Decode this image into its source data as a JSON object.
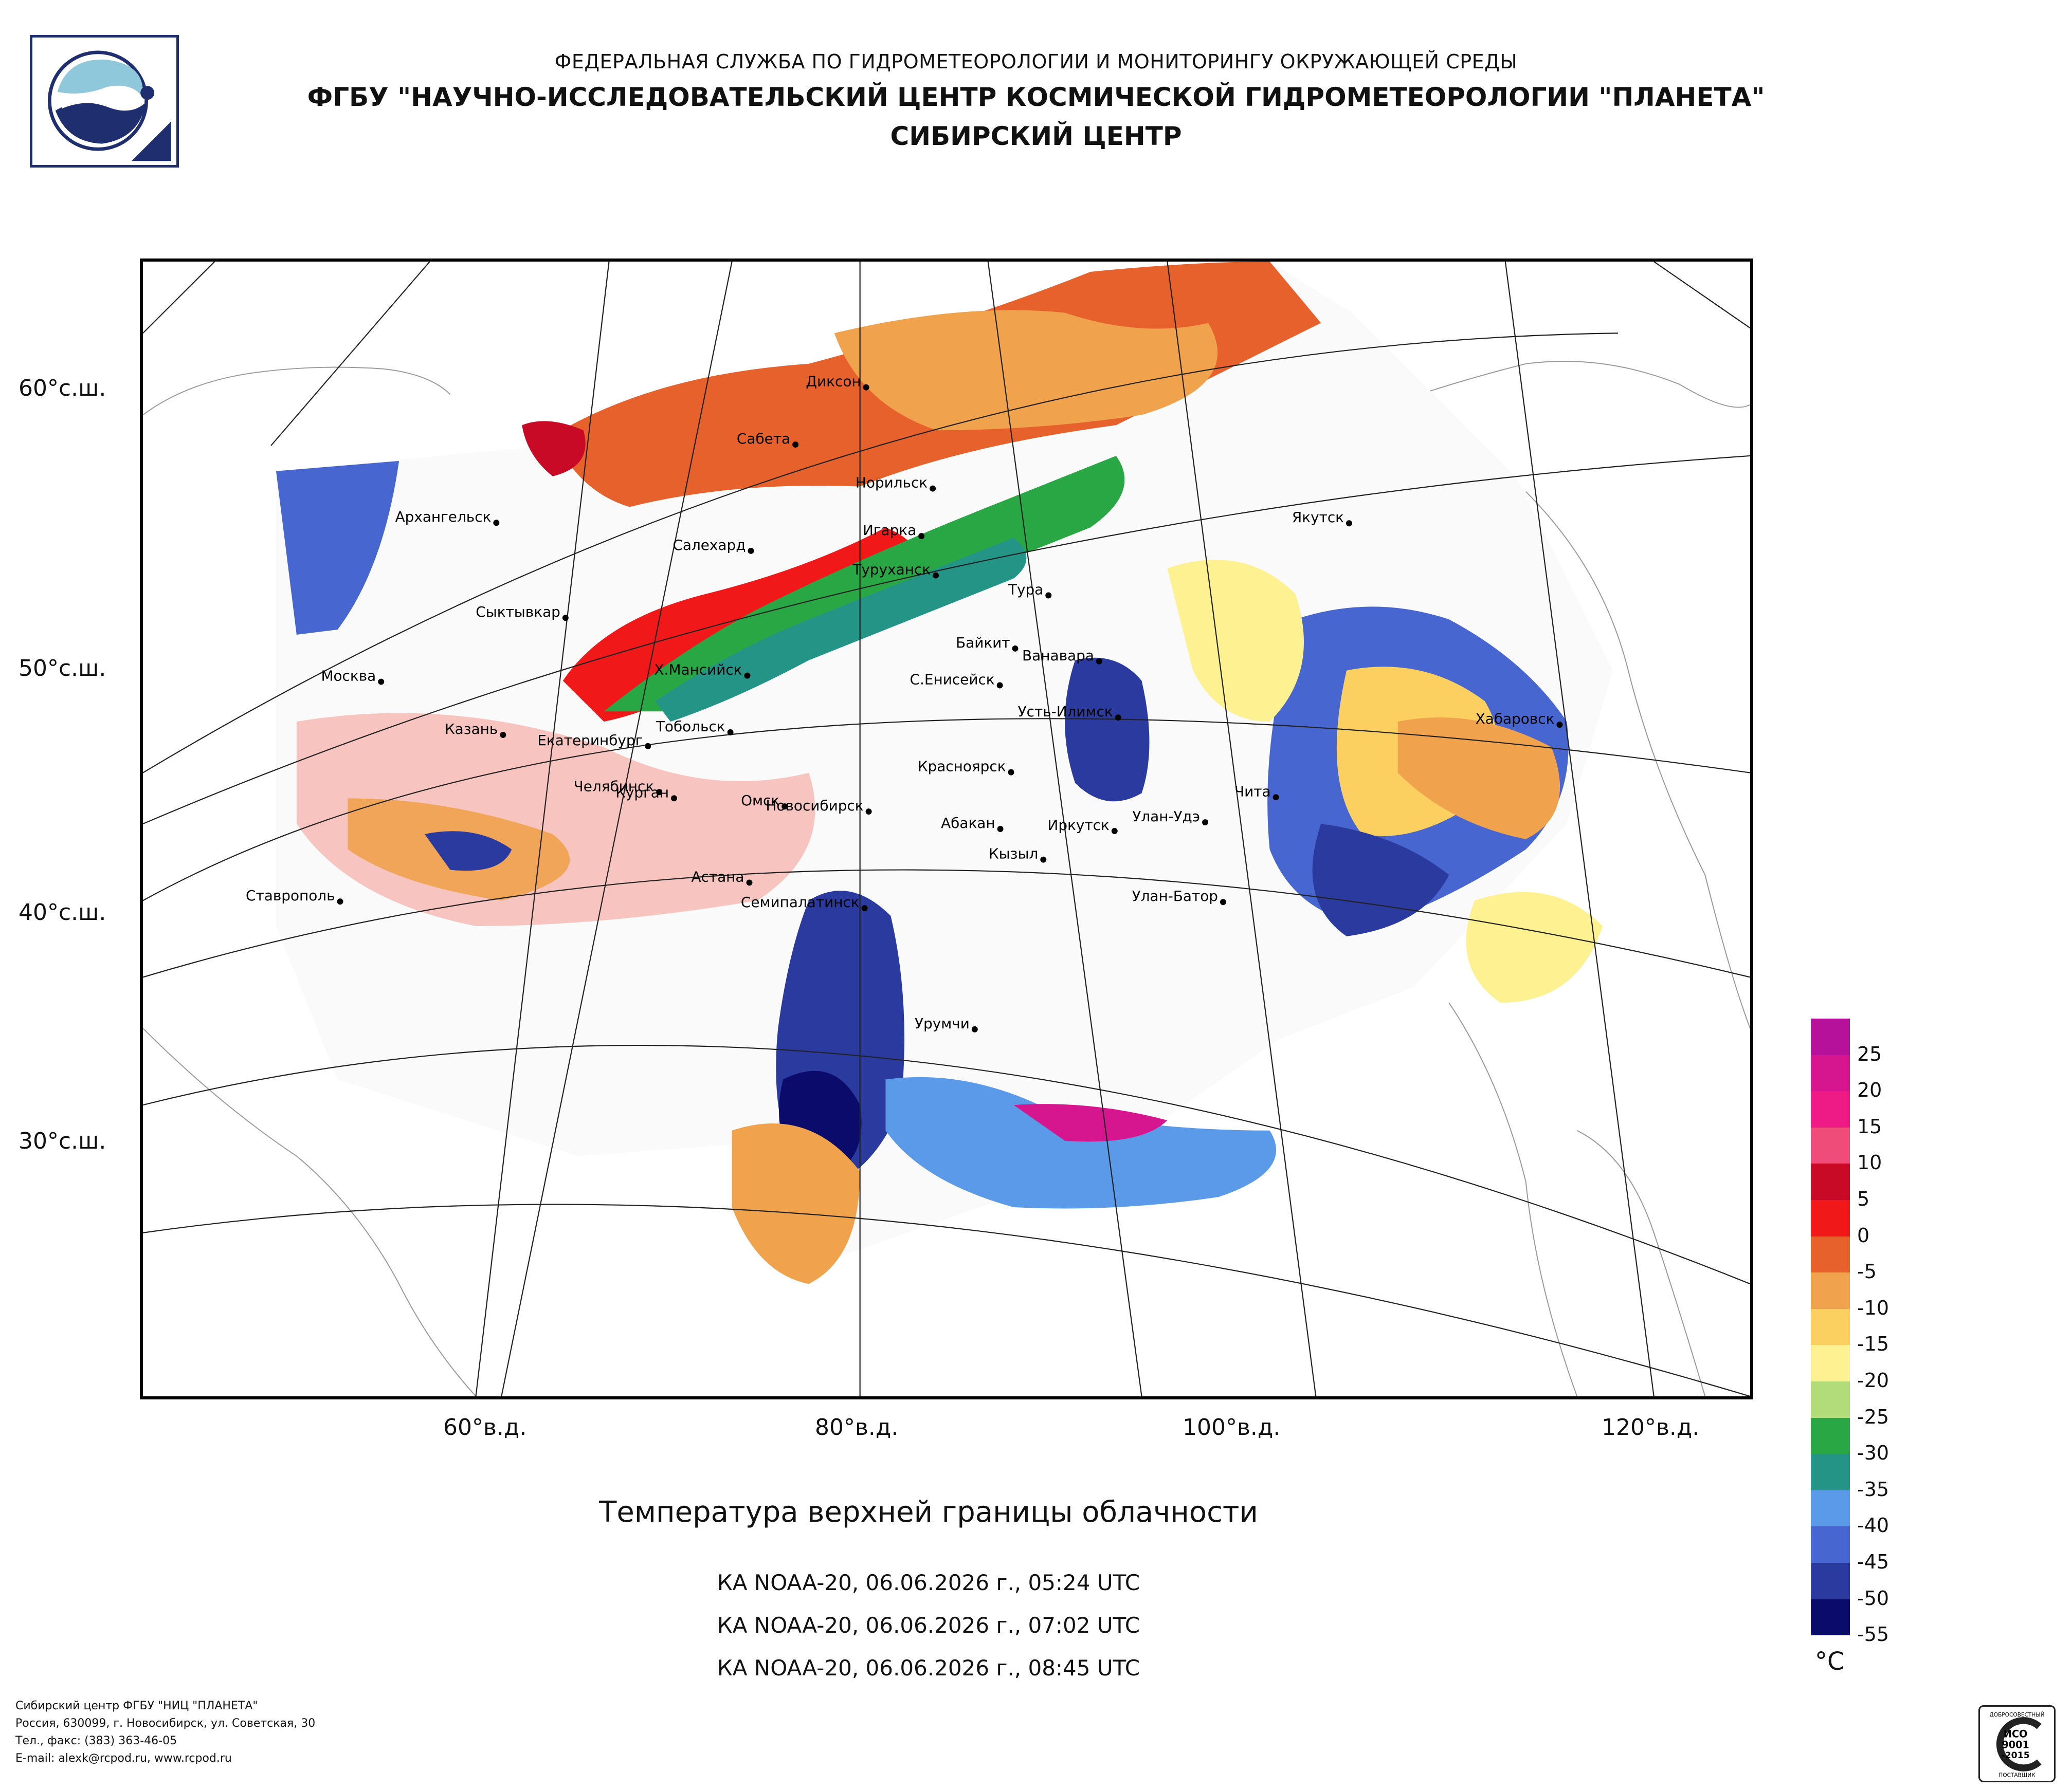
{
  "header": {
    "line1": "ФЕДЕРАЛЬНАЯ СЛУЖБА ПО ГИДРОМЕТЕОРОЛОГИИ И МОНИТОРИНГУ ОКРУЖАЮЩЕЙ СРЕДЫ",
    "line2": "ФГБУ \"НАУЧНО-ИССЛЕДОВАТЕЛЬСКИЙ ЦЕНТР КОСМИЧЕСКОЙ ГИДРОМЕТЕОРОЛОГИИ \"ПЛАНЕТА\"",
    "line3": "СИБИРСКИЙ ЦЕНТР"
  },
  "logo": {
    "icon": "planeta-logo-icon"
  },
  "map": {
    "title": "Температура верхней границы облачности",
    "lat_labels": [
      "60°с.ш.",
      "50°с.ш.",
      "40°с.ш.",
      "30°с.ш."
    ],
    "lon_labels": [
      "60°в.д.",
      "80°в.д.",
      "100°в.д.",
      "120°в.д."
    ],
    "cities": [
      {
        "name": "Диксон"
      },
      {
        "name": "Сабета"
      },
      {
        "name": "Норильск"
      },
      {
        "name": "Игарка"
      },
      {
        "name": "Архангельск"
      },
      {
        "name": "Салехард"
      },
      {
        "name": "Туруханск"
      },
      {
        "name": "Тура"
      },
      {
        "name": "Якутск"
      },
      {
        "name": "Сыктывкар"
      },
      {
        "name": "Байкит"
      },
      {
        "name": "Ванавара"
      },
      {
        "name": "Москва"
      },
      {
        "name": "Х.Мансийск"
      },
      {
        "name": "С.Енисейск"
      },
      {
        "name": "Усть-Илимск"
      },
      {
        "name": "Хабаровск"
      },
      {
        "name": "Казань"
      },
      {
        "name": "Екатеринбург"
      },
      {
        "name": "Тобольск"
      },
      {
        "name": "Красноярск"
      },
      {
        "name": "Челябинск"
      },
      {
        "name": "Курган"
      },
      {
        "name": "Омск"
      },
      {
        "name": "Новосибирск"
      },
      {
        "name": "Абакан"
      },
      {
        "name": "Чита"
      },
      {
        "name": "Улан-Удэ"
      },
      {
        "name": "Иркутск"
      },
      {
        "name": "Кызыл"
      },
      {
        "name": "Астана"
      },
      {
        "name": "Ставрополь"
      },
      {
        "name": "Семипалатинск"
      },
      {
        "name": "Улан-Батор"
      },
      {
        "name": "Урумчи"
      }
    ]
  },
  "legend": {
    "unit": "°C",
    "ticks": [
      "25",
      "20",
      "15",
      "10",
      "5",
      "0",
      "-5",
      "-10",
      "-15",
      "-20",
      "-25",
      "-30",
      "-35",
      "-40",
      "-45",
      "-50",
      "-55"
    ],
    "colors": [
      "#b5119b",
      "#d6168f",
      "#ee1a86",
      "#ef4c7a",
      "#c80a26",
      "#f01818",
      "#e6612b",
      "#f0a24d",
      "#fbd060",
      "#fdf191",
      "#b2db7a",
      "#2aa745",
      "#239486",
      "#5a9ae8",
      "#4766d0",
      "#2a3a9e",
      "#0a0b6b"
    ]
  },
  "passes": [
    "КА NOAA-20, 06.06.2026 г., 05:24 UTC",
    "КА NOAA-20, 06.06.2026 г., 07:02 UTC",
    "КА NOAA-20, 06.06.2026 г., 08:45 UTC"
  ],
  "footer": {
    "line1": "Сибирский центр ФГБУ \"НИЦ \"ПЛАНЕТА\"",
    "line2": "Россия, 630099, г. Новосибирск, ул. Советская, 30",
    "line3": "Тел., факс: (383) 363-46-05",
    "line4": "E-mail: alexk@rcpod.ru, www.rcpod.ru"
  },
  "cert": {
    "top": "ДОБРОСОВЕСТНЫЙ",
    "mid1": "ИСО",
    "mid2": "9001",
    "mid3": "-2015",
    "bottom": "ПОСТАВЩИК"
  }
}
